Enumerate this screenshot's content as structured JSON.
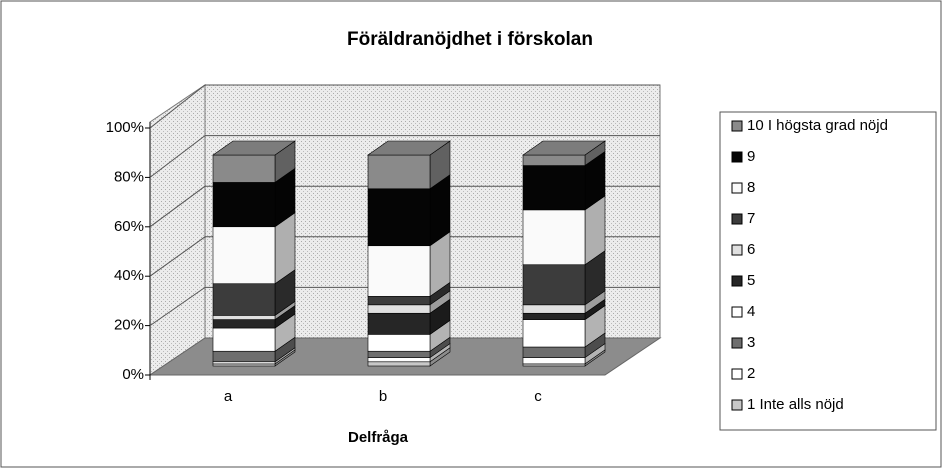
{
  "chart_data": {
    "type": "bar3d_stacked",
    "title": "Föräldranöjdhet i förskolan",
    "x_label": "Delfråga",
    "categories": [
      "a",
      "b",
      "c"
    ],
    "series": [
      {
        "name": "1 Inte alls nöjd",
        "color": "#c8c8c8",
        "values": [
          1,
          2,
          1
        ]
      },
      {
        "name": "2",
        "color": "#ffffff",
        "values": [
          1,
          2,
          3
        ]
      },
      {
        "name": "3",
        "color": "#6e6e6e",
        "values": [
          5,
          3,
          5
        ]
      },
      {
        "name": "4",
        "color": "#ffffff",
        "values": [
          11,
          8,
          13
        ]
      },
      {
        "name": "5",
        "color": "#262626",
        "values": [
          4,
          10,
          3
        ]
      },
      {
        "name": "6",
        "color": "#e0e0e0",
        "values": [
          2,
          4,
          4
        ]
      },
      {
        "name": "7",
        "color": "#3c3c3c",
        "values": [
          15,
          4,
          19
        ]
      },
      {
        "name": "8",
        "color": "#fafafa",
        "values": [
          27,
          24,
          26
        ]
      },
      {
        "name": "9",
        "color": "#050505",
        "values": [
          21,
          27,
          21
        ]
      },
      {
        "name": "10 I högsta grad nöjd",
        "color": "#8a8a8a",
        "values": [
          13,
          16,
          5
        ]
      }
    ],
    "ylim": [
      0,
      100
    ],
    "yticks": [
      {
        "value": 0,
        "label": "0%"
      },
      {
        "value": 20,
        "label": "20%"
      },
      {
        "value": 40,
        "label": "40%"
      },
      {
        "value": 60,
        "label": "60%"
      },
      {
        "value": 80,
        "label": "80%"
      },
      {
        "value": 100,
        "label": "100%"
      }
    ],
    "grid": true
  }
}
